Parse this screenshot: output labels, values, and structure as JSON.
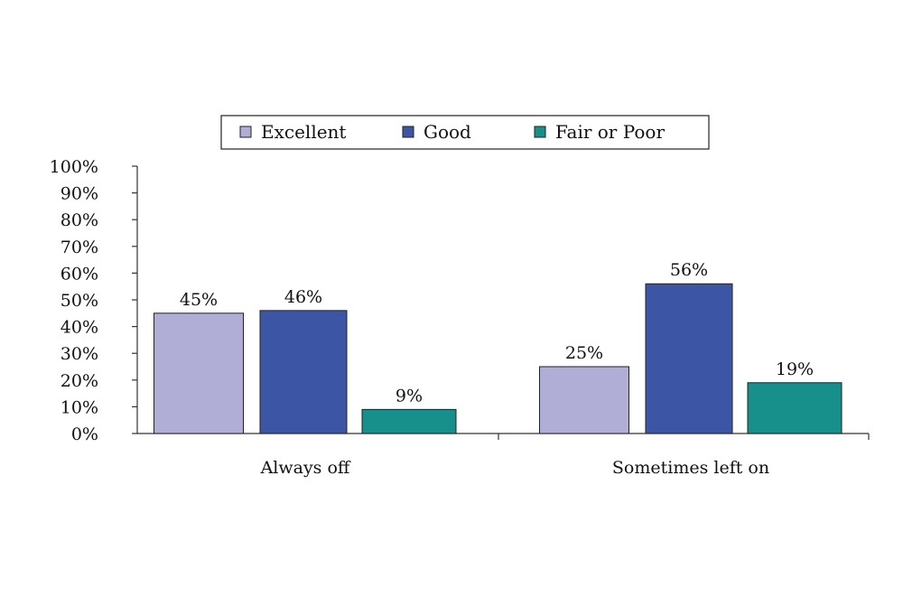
{
  "chart_data": {
    "type": "bar",
    "title": "",
    "xlabel": "",
    "ylabel": "",
    "ylim": [
      0,
      100
    ],
    "ytick_step": 10,
    "ytick_labels": [
      "0%",
      "10%",
      "20%",
      "30%",
      "40%",
      "50%",
      "60%",
      "70%",
      "80%",
      "90%",
      "100%"
    ],
    "grid": false,
    "legend_position": "top",
    "categories": [
      "Always off",
      "Sometimes left on"
    ],
    "series": [
      {
        "name": "Excellent",
        "color": "#b0aed6",
        "values": [
          45,
          25
        ],
        "labels": [
          "45%",
          "25%"
        ]
      },
      {
        "name": "Good",
        "color": "#3d55a5",
        "values": [
          46,
          56
        ],
        "labels": [
          "46%",
          "56%"
        ]
      },
      {
        "name": "Fair or Poor",
        "color": "#178f8b",
        "values": [
          9,
          19
        ],
        "labels": [
          "9%",
          "19%"
        ]
      }
    ]
  }
}
